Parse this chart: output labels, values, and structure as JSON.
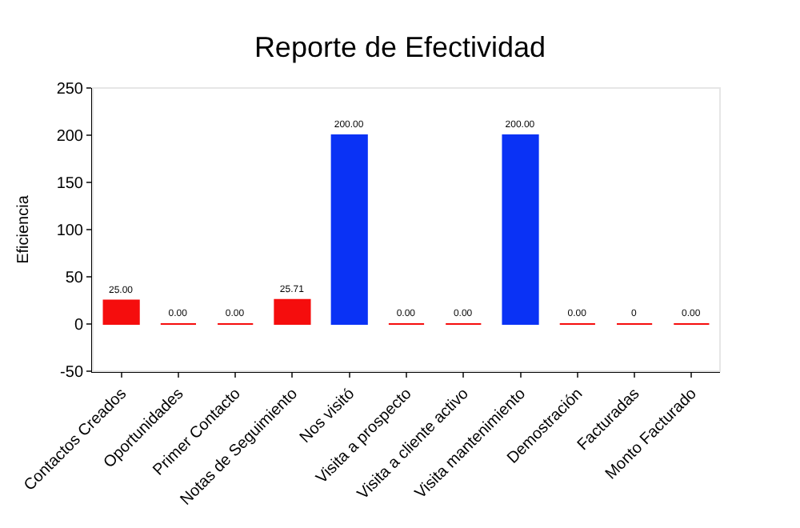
{
  "chart_data": {
    "type": "bar",
    "title": "Reporte de Efectividad",
    "ylabel": "Eficiencia",
    "categories": [
      "Contactos Creados",
      "Oportunidades",
      "Primer Contacto",
      "Notas de Seguimiento",
      "Nos visitó",
      "Visita a prospecto",
      "Visita a cliente activo",
      "Visita mantenimiento",
      "Demostración",
      "Facturadas",
      "Monto Facturado"
    ],
    "values": [
      25,
      0,
      0,
      25.71,
      200,
      0,
      0,
      200,
      0,
      0,
      0
    ],
    "value_labels": [
      "25.00",
      "0.00",
      "0.00",
      "25.71",
      "200.00",
      "0.00",
      "0.00",
      "200.00",
      "0.00",
      "0",
      "0.00"
    ],
    "colors": [
      "#f50d0d",
      "#f50d0d",
      "#f50d0d",
      "#f50d0d",
      "#0a32f5",
      "#f50d0d",
      "#f50d0d",
      "#0a32f5",
      "#f50d0d",
      "#f50d0d",
      "#f50d0d"
    ],
    "ylim": [
      -50,
      250
    ],
    "yticks": [
      -50,
      0,
      50,
      100,
      150,
      200,
      250
    ]
  }
}
